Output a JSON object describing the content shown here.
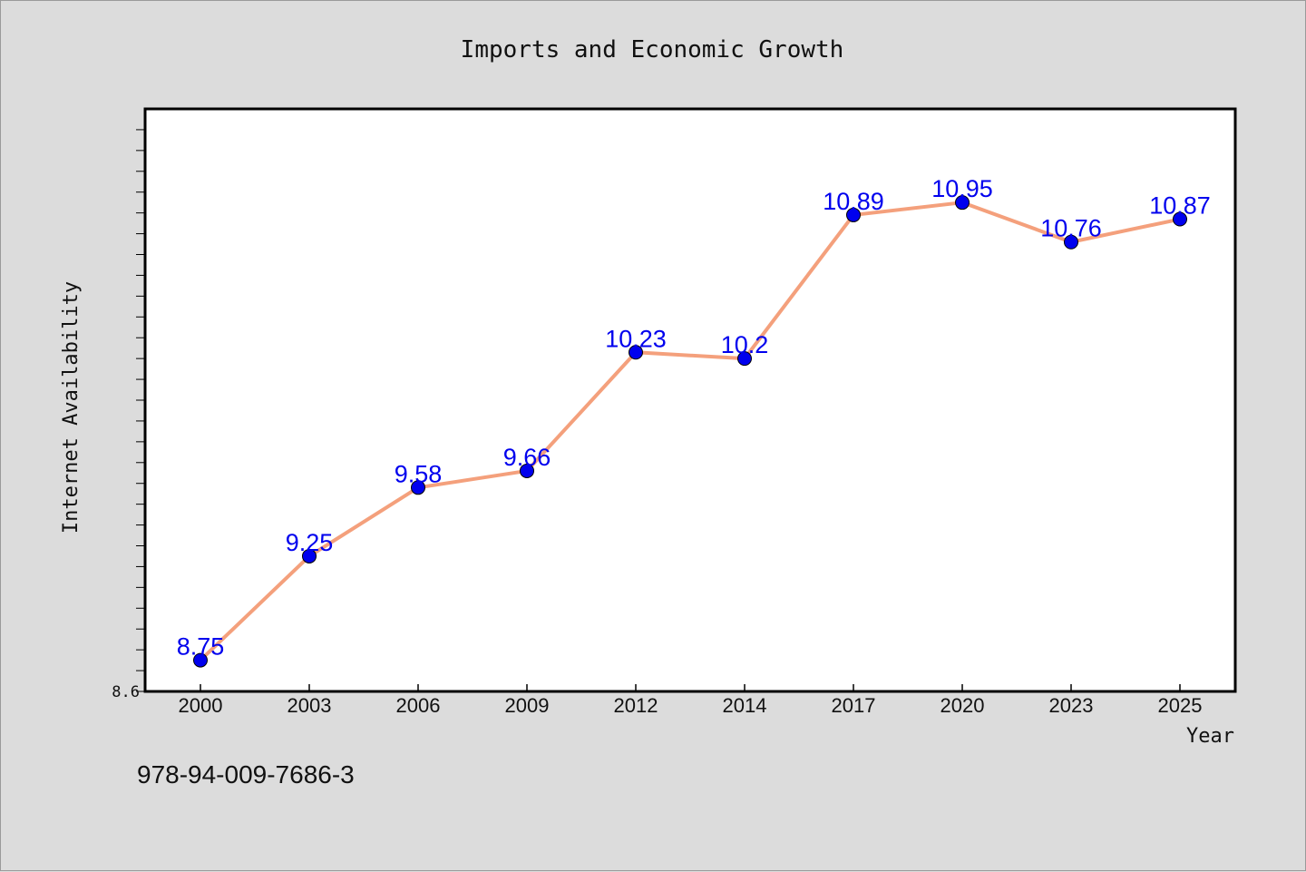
{
  "chart_data": {
    "type": "line",
    "title": "Imports and Economic Growth",
    "xlabel": "Year",
    "ylabel": "Internet Availability",
    "categories": [
      "2000",
      "2003",
      "2006",
      "2009",
      "2012",
      "2014",
      "2017",
      "2020",
      "2023",
      "2025"
    ],
    "series": [
      {
        "values": [
          8.75,
          9.25,
          9.58,
          9.66,
          10.23,
          10.2,
          10.89,
          10.95,
          10.76,
          10.87
        ],
        "data_labels": [
          "8.75",
          "9.25",
          "9.58",
          "9.66",
          "10.23",
          "10.2",
          "10.89",
          "10.95",
          "10.76",
          "10.87"
        ],
        "line_color": "#f4a07c",
        "marker_color": "#0000ee"
      }
    ],
    "ylim": [
      8.6,
      11.4
    ],
    "ytick_labels": [
      "8.6"
    ],
    "grid": false,
    "legend": "none"
  },
  "footer": {
    "text": "978-94-009-7686-3"
  }
}
